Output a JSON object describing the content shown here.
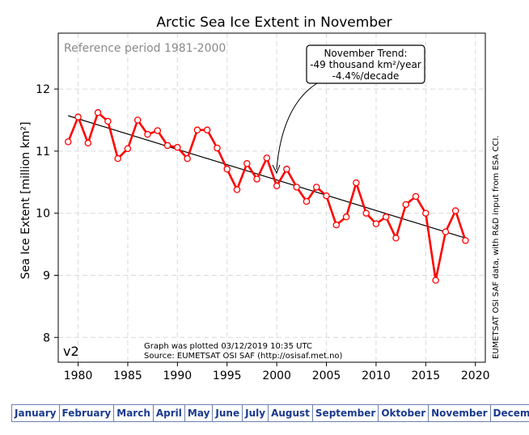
{
  "chart_data": {
    "type": "line",
    "title": "Arctic Sea Ice Extent in November",
    "subtitle": "Reference period 1981-2000",
    "ylabel": "Sea Ice Extent [million km²]",
    "xlabel": "",
    "xlim": [
      1978,
      2021
    ],
    "ylim": [
      7.6,
      12.9
    ],
    "x_ticks": [
      1980,
      1985,
      1990,
      1995,
      2000,
      2005,
      2010,
      2015,
      2020
    ],
    "y_ticks": [
      8,
      9,
      10,
      11,
      12
    ],
    "grid": true,
    "series": [
      {
        "color": "#ff0000",
        "x": [
          1979,
          1980,
          1981,
          1982,
          1983,
          1984,
          1985,
          1986,
          1987,
          1988,
          1989,
          1990,
          1991,
          1992,
          1993,
          1994,
          1995,
          1996,
          1997,
          1998,
          1999,
          2000,
          2001,
          2002,
          2003,
          2004,
          2005,
          2006,
          2007,
          2008,
          2009,
          2010,
          2011,
          2012,
          2013,
          2014,
          2015,
          2016,
          2017,
          2018,
          2019
        ],
        "y": [
          11.15,
          11.55,
          11.13,
          11.62,
          11.48,
          10.88,
          11.04,
          11.5,
          11.27,
          11.33,
          11.09,
          11.06,
          10.88,
          11.34,
          11.34,
          11.05,
          10.71,
          10.38,
          10.8,
          10.55,
          10.89,
          10.44,
          10.71,
          10.42,
          10.19,
          10.42,
          10.28,
          9.81,
          9.94,
          10.49,
          10.0,
          9.83,
          9.94,
          9.6,
          10.14,
          10.27,
          10.0,
          8.92,
          9.7,
          10.04,
          9.56
        ]
      }
    ],
    "trend": {
      "color": "#000000",
      "x": [
        1979,
        2019
      ],
      "y": [
        11.57,
        9.6
      ]
    },
    "annotations": {
      "trend_title": "November Trend:",
      "trend_rate": "-49 thousand km²/year",
      "trend_decade": "-4.4%/decade",
      "version": "v2",
      "plotted": "Graph was plotted 03/12/2019 10:35 UTC",
      "source": "Source: EUMETSAT OSI SAF (http://osisaf.met.no)",
      "credit": "EUMETSAT OSI SAF data, with R&D input from ESA CCI."
    }
  },
  "month_nav": [
    "January",
    "February",
    "March",
    "April",
    "May",
    "June",
    "July",
    "August",
    "September",
    "Oktober",
    "November",
    "December"
  ]
}
